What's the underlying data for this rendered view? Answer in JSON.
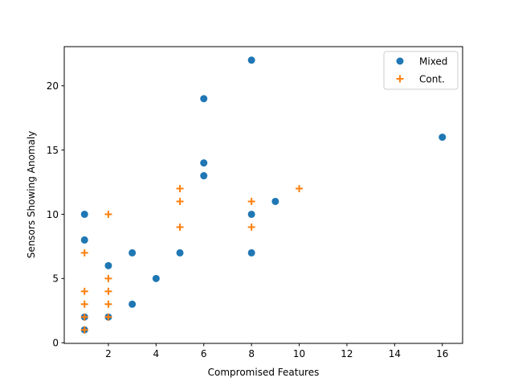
{
  "chart_data": {
    "type": "scatter",
    "title": "",
    "xlabel": "Compromised Features",
    "ylabel": "Sensors Showing Anomaly",
    "xlim": [
      0.15,
      16.85
    ],
    "ylim": [
      -0.05,
      23.05
    ],
    "xticks": [
      2,
      4,
      6,
      8,
      10,
      12,
      14,
      16
    ],
    "yticks": [
      0,
      5,
      10,
      15,
      20
    ],
    "grid": false,
    "legend_position": "top-right",
    "series": [
      {
        "name": "Mixed",
        "marker": "circle",
        "color": "#1f77b4",
        "points": [
          [
            1,
            1
          ],
          [
            1,
            2
          ],
          [
            1,
            8
          ],
          [
            1,
            10
          ],
          [
            2,
            2
          ],
          [
            2,
            6
          ],
          [
            3,
            3
          ],
          [
            3,
            7
          ],
          [
            4,
            5
          ],
          [
            5,
            7
          ],
          [
            6,
            13
          ],
          [
            6,
            14
          ],
          [
            6,
            19
          ],
          [
            8,
            7
          ],
          [
            8,
            10
          ],
          [
            8,
            22
          ],
          [
            9,
            11
          ],
          [
            16,
            16
          ]
        ]
      },
      {
        "name": "Cont.",
        "marker": "plus",
        "color": "#ff7f0e",
        "points": [
          [
            1,
            1
          ],
          [
            1,
            2
          ],
          [
            1,
            3
          ],
          [
            1,
            4
          ],
          [
            1,
            7
          ],
          [
            2,
            2
          ],
          [
            2,
            3
          ],
          [
            2,
            4
          ],
          [
            2,
            5
          ],
          [
            2,
            10
          ],
          [
            5,
            9
          ],
          [
            5,
            11
          ],
          [
            5,
            12
          ],
          [
            8,
            9
          ],
          [
            8,
            11
          ],
          [
            10,
            12
          ]
        ]
      }
    ]
  }
}
